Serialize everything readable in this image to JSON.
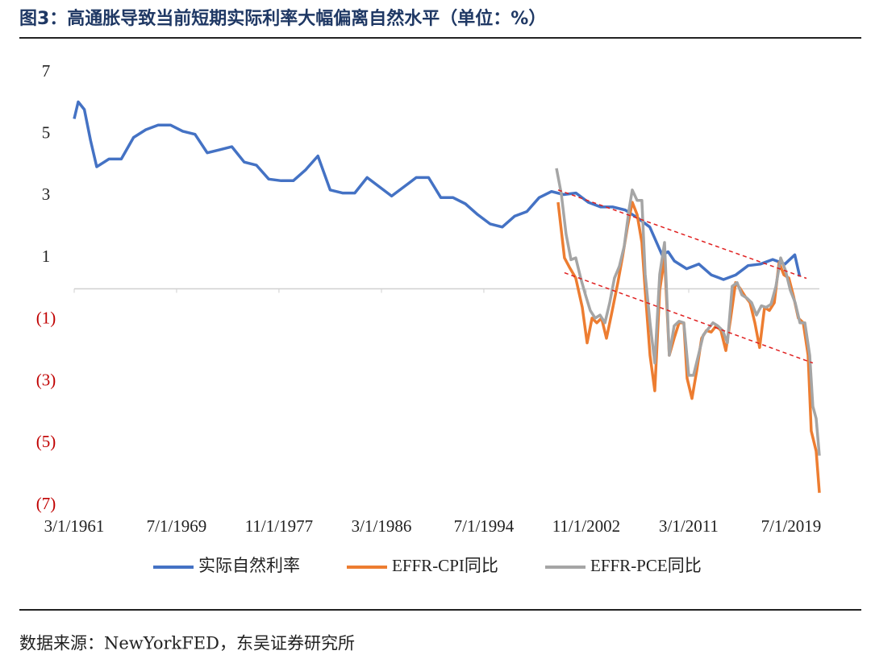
{
  "chart_data": {
    "type": "line",
    "title": "图3：高通胀导致当前短期实际利率大幅偏离自然水平（单位：%）",
    "source": "数据来源：NewYorkFED，东吴证券研究所",
    "xlim": [
      1961.17,
      2021.8
    ],
    "xticks": [
      {
        "value": 1961.17,
        "label": "3/1/1961"
      },
      {
        "value": 1969.5,
        "label": "7/1/1969"
      },
      {
        "value": 1977.83,
        "label": "11/1/1977"
      },
      {
        "value": 1986.17,
        "label": "3/1/1986"
      },
      {
        "value": 1994.5,
        "label": "7/1/1994"
      },
      {
        "value": 2002.83,
        "label": "11/1/2002"
      },
      {
        "value": 2011.17,
        "label": "3/1/2011"
      },
      {
        "value": 2019.5,
        "label": "7/1/2019"
      }
    ],
    "ylim": [
      -7,
      7
    ],
    "yticks": [
      {
        "value": -7,
        "label": "(7)"
      },
      {
        "value": -5,
        "label": "(5)"
      },
      {
        "value": -3,
        "label": "(3)"
      },
      {
        "value": -1,
        "label": "(1)"
      },
      1,
      3,
      5,
      7
    ],
    "negative_tick_color": "#c00000",
    "series": [
      {
        "name": "实际自然利率",
        "color": "#4472c4",
        "x": [
          1961.17,
          1961.5,
          1962,
          1962.5,
          1963,
          1964,
          1965,
          1966,
          1967,
          1968,
          1969,
          1970,
          1971,
          1972,
          1973,
          1974,
          1975,
          1976,
          1977,
          1978,
          1979,
          1980,
          1981,
          1982,
          1983,
          1984,
          1985,
          1986,
          1987,
          1988,
          1989,
          1990,
          1991,
          1992,
          1993,
          1994,
          1995,
          1996,
          1997,
          1998,
          1999,
          2000,
          2001,
          2002,
          2003,
          2004,
          2005,
          2006,
          2007,
          2008,
          2009,
          2009.5,
          2010,
          2011,
          2012,
          2013,
          2014,
          2015,
          2016,
          2017,
          2018,
          2019,
          2019.8,
          2020.2
        ],
        "values": [
          5.5,
          6.05,
          5.8,
          4.8,
          3.95,
          4.2,
          4.2,
          4.9,
          5.15,
          5.3,
          5.3,
          5.1,
          5.0,
          4.4,
          4.5,
          4.6,
          4.1,
          4.0,
          3.55,
          3.5,
          3.5,
          3.85,
          4.3,
          3.2,
          3.1,
          3.1,
          3.6,
          3.3,
          3.0,
          3.3,
          3.6,
          3.6,
          2.95,
          2.95,
          2.75,
          2.4,
          2.1,
          2.0,
          2.35,
          2.5,
          2.95,
          3.15,
          3.05,
          3.1,
          2.8,
          2.65,
          2.65,
          2.55,
          2.3,
          2.0,
          1.1,
          1.2,
          0.9,
          0.65,
          0.8,
          0.45,
          0.3,
          0.45,
          0.75,
          0.8,
          0.95,
          0.8,
          1.1,
          0.4
        ]
      },
      {
        "name": "EFFR-CPI同比",
        "color": "#ed7d31",
        "x": [
          2000.54,
          2001.06,
          2001.46,
          2001.98,
          2002.51,
          2002.9,
          2003.3,
          2003.69,
          2004.08,
          2004.48,
          2004.87,
          2005.4,
          2005.79,
          2006.18,
          2006.58,
          2006.97,
          2007.36,
          2007.63,
          2008.02,
          2008.41,
          2008.81,
          2009.2,
          2009.59,
          2009.98,
          2010.38,
          2010.77,
          2011.04,
          2011.43,
          2011.82,
          2012.22,
          2012.61,
          2013.0,
          2013.4,
          2013.79,
          2014.19,
          2014.58,
          2014.98,
          2015.37,
          2015.76,
          2016.16,
          2016.55,
          2016.94,
          2017.34,
          2017.73,
          2018.13,
          2018.52,
          2018.91,
          2019.31,
          2019.7,
          2020.09,
          2020.49,
          2020.88,
          2021.14,
          2021.54,
          2021.8
        ],
        "values": [
          2.8,
          1.0,
          0.7,
          0.35,
          -0.6,
          -1.75,
          -0.95,
          -1.1,
          -0.95,
          -1.6,
          -0.85,
          0.2,
          1.05,
          2.0,
          2.8,
          2.4,
          1.5,
          -0.05,
          -2.15,
          -3.3,
          -0.05,
          1.0,
          -2.15,
          -1.6,
          -1.1,
          -1.1,
          -2.9,
          -3.55,
          -2.65,
          -1.6,
          -1.35,
          -1.4,
          -1.2,
          -1.35,
          -2.0,
          -0.95,
          0.2,
          0,
          -0.25,
          -0.45,
          -1.1,
          -1.9,
          -0.6,
          -0.7,
          -0.45,
          0.85,
          0.45,
          0.35,
          -0.25,
          -0.95,
          -1.1,
          -2.15,
          -4.6,
          -5.25,
          -6.6
        ]
      },
      {
        "name": "EFFR-PCE同比",
        "color": "#a5a5a5",
        "x": [
          2000.41,
          2000.8,
          2001.19,
          2001.59,
          2001.98,
          2002.38,
          2002.77,
          2003.16,
          2003.56,
          2003.95,
          2004.35,
          2004.74,
          2005.13,
          2005.53,
          2005.92,
          2006.31,
          2006.58,
          2006.97,
          2007.36,
          2007.63,
          2008.02,
          2008.41,
          2008.81,
          2009.2,
          2009.59,
          2009.98,
          2010.38,
          2010.77,
          2011.17,
          2011.56,
          2011.96,
          2012.35,
          2012.74,
          2013.14,
          2013.53,
          2013.93,
          2014.32,
          2014.71,
          2015.11,
          2015.5,
          2015.9,
          2016.29,
          2016.68,
          2017.08,
          2017.47,
          2017.86,
          2018.26,
          2018.65,
          2019.04,
          2019.44,
          2019.83,
          2020.22,
          2020.62,
          2021.01,
          2021.27,
          2021.54,
          2021.8
        ],
        "values": [
          3.9,
          3.07,
          1.77,
          0.94,
          1.0,
          0.35,
          -0.2,
          -0.7,
          -0.95,
          -0.85,
          -1.1,
          -0.45,
          0.35,
          0.73,
          1.38,
          2.55,
          3.2,
          2.86,
          2.86,
          0.47,
          -1.1,
          -2.4,
          0.47,
          1.5,
          -2.15,
          -1.2,
          -1.05,
          -1.1,
          -2.8,
          -2.8,
          -2.15,
          -1.5,
          -1.3,
          -1.1,
          -1.2,
          -1.35,
          -1.75,
          0.08,
          0.2,
          -0.2,
          -0.3,
          -0.45,
          -0.85,
          -0.55,
          -0.6,
          -0.5,
          0.08,
          1.0,
          0.6,
          -0.05,
          -0.45,
          -1.1,
          -1.1,
          -2.15,
          -3.8,
          -4.2,
          -5.4
        ]
      }
    ],
    "trend_lines": [
      {
        "color": "#e02020",
        "x": [
          2000.54,
          2020.75
        ],
        "y": [
          3.2,
          0.34
        ]
      },
      {
        "color": "#e02020",
        "x": [
          2001.06,
          2021.27
        ],
        "y": [
          0.52,
          -2.4
        ]
      }
    ]
  }
}
